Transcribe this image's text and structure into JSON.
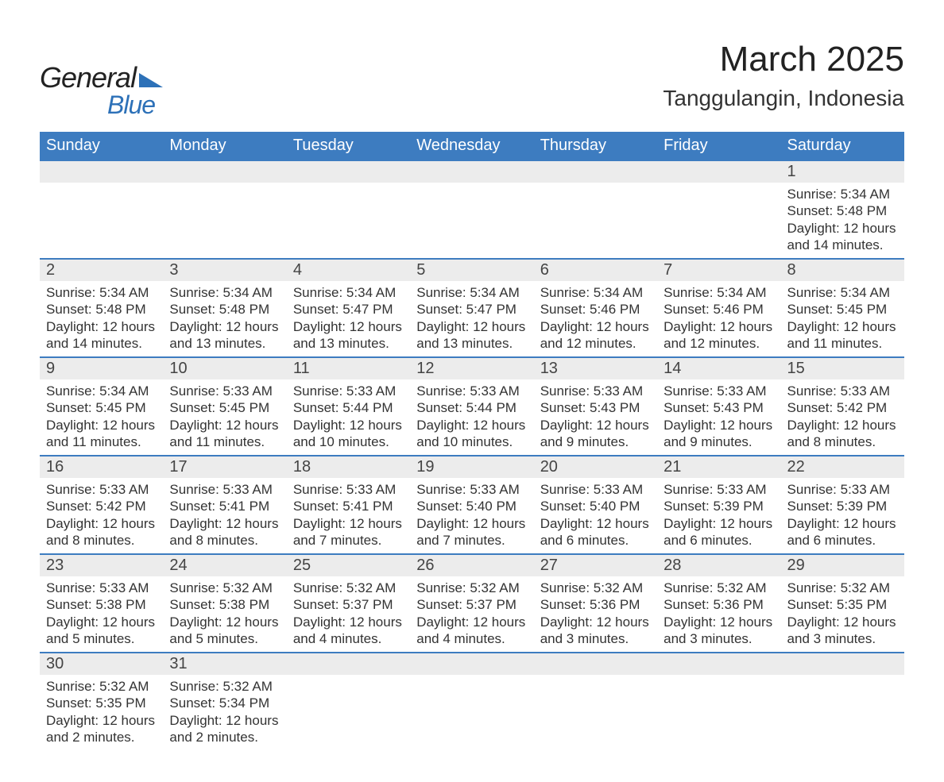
{
  "brand": {
    "name_part1": "General",
    "name_part2": "Blue"
  },
  "title": "March 2025",
  "location": "Tanggulangin, Indonesia",
  "colors": {
    "header_bg": "#3d7cc0",
    "header_text": "#ffffff",
    "row_divider": "#3d7cc0",
    "daynum_bg": "#ececec",
    "body_text": "#333333",
    "brand_blue": "#2d71b8",
    "page_bg": "#ffffff"
  },
  "typography": {
    "title_fontsize": 44,
    "location_fontsize": 28,
    "dayheader_fontsize": 20,
    "daynum_fontsize": 20,
    "body_fontsize": 17
  },
  "calendar": {
    "type": "month-grid",
    "day_headers": [
      "Sunday",
      "Monday",
      "Tuesday",
      "Wednesday",
      "Thursday",
      "Friday",
      "Saturday"
    ],
    "first_weekday_index": 6,
    "days_in_month": 31,
    "days": {
      "1": {
        "sunrise": "5:34 AM",
        "sunset": "5:48 PM",
        "daylight": "12 hours and 14 minutes."
      },
      "2": {
        "sunrise": "5:34 AM",
        "sunset": "5:48 PM",
        "daylight": "12 hours and 14 minutes."
      },
      "3": {
        "sunrise": "5:34 AM",
        "sunset": "5:48 PM",
        "daylight": "12 hours and 13 minutes."
      },
      "4": {
        "sunrise": "5:34 AM",
        "sunset": "5:47 PM",
        "daylight": "12 hours and 13 minutes."
      },
      "5": {
        "sunrise": "5:34 AM",
        "sunset": "5:47 PM",
        "daylight": "12 hours and 13 minutes."
      },
      "6": {
        "sunrise": "5:34 AM",
        "sunset": "5:46 PM",
        "daylight": "12 hours and 12 minutes."
      },
      "7": {
        "sunrise": "5:34 AM",
        "sunset": "5:46 PM",
        "daylight": "12 hours and 12 minutes."
      },
      "8": {
        "sunrise": "5:34 AM",
        "sunset": "5:45 PM",
        "daylight": "12 hours and 11 minutes."
      },
      "9": {
        "sunrise": "5:34 AM",
        "sunset": "5:45 PM",
        "daylight": "12 hours and 11 minutes."
      },
      "10": {
        "sunrise": "5:33 AM",
        "sunset": "5:45 PM",
        "daylight": "12 hours and 11 minutes."
      },
      "11": {
        "sunrise": "5:33 AM",
        "sunset": "5:44 PM",
        "daylight": "12 hours and 10 minutes."
      },
      "12": {
        "sunrise": "5:33 AM",
        "sunset": "5:44 PM",
        "daylight": "12 hours and 10 minutes."
      },
      "13": {
        "sunrise": "5:33 AM",
        "sunset": "5:43 PM",
        "daylight": "12 hours and 9 minutes."
      },
      "14": {
        "sunrise": "5:33 AM",
        "sunset": "5:43 PM",
        "daylight": "12 hours and 9 minutes."
      },
      "15": {
        "sunrise": "5:33 AM",
        "sunset": "5:42 PM",
        "daylight": "12 hours and 8 minutes."
      },
      "16": {
        "sunrise": "5:33 AM",
        "sunset": "5:42 PM",
        "daylight": "12 hours and 8 minutes."
      },
      "17": {
        "sunrise": "5:33 AM",
        "sunset": "5:41 PM",
        "daylight": "12 hours and 8 minutes."
      },
      "18": {
        "sunrise": "5:33 AM",
        "sunset": "5:41 PM",
        "daylight": "12 hours and 7 minutes."
      },
      "19": {
        "sunrise": "5:33 AM",
        "sunset": "5:40 PM",
        "daylight": "12 hours and 7 minutes."
      },
      "20": {
        "sunrise": "5:33 AM",
        "sunset": "5:40 PM",
        "daylight": "12 hours and 6 minutes."
      },
      "21": {
        "sunrise": "5:33 AM",
        "sunset": "5:39 PM",
        "daylight": "12 hours and 6 minutes."
      },
      "22": {
        "sunrise": "5:33 AM",
        "sunset": "5:39 PM",
        "daylight": "12 hours and 6 minutes."
      },
      "23": {
        "sunrise": "5:33 AM",
        "sunset": "5:38 PM",
        "daylight": "12 hours and 5 minutes."
      },
      "24": {
        "sunrise": "5:32 AM",
        "sunset": "5:38 PM",
        "daylight": "12 hours and 5 minutes."
      },
      "25": {
        "sunrise": "5:32 AM",
        "sunset": "5:37 PM",
        "daylight": "12 hours and 4 minutes."
      },
      "26": {
        "sunrise": "5:32 AM",
        "sunset": "5:37 PM",
        "daylight": "12 hours and 4 minutes."
      },
      "27": {
        "sunrise": "5:32 AM",
        "sunset": "5:36 PM",
        "daylight": "12 hours and 3 minutes."
      },
      "28": {
        "sunrise": "5:32 AM",
        "sunset": "5:36 PM",
        "daylight": "12 hours and 3 minutes."
      },
      "29": {
        "sunrise": "5:32 AM",
        "sunset": "5:35 PM",
        "daylight": "12 hours and 3 minutes."
      },
      "30": {
        "sunrise": "5:32 AM",
        "sunset": "5:35 PM",
        "daylight": "12 hours and 2 minutes."
      },
      "31": {
        "sunrise": "5:32 AM",
        "sunset": "5:34 PM",
        "daylight": "12 hours and 2 minutes."
      }
    },
    "labels": {
      "sunrise": "Sunrise:",
      "sunset": "Sunset:",
      "daylight": "Daylight:"
    }
  }
}
